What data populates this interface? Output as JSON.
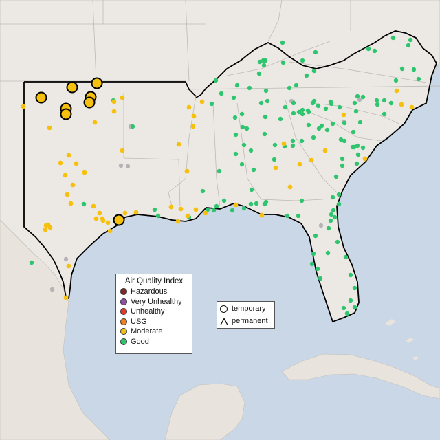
{
  "colors": {
    "water": "#c9d7e6",
    "land": "#ece9e4",
    "border": "#b9b6b1",
    "outline": "#000000",
    "Hazardous": "#7e2a2a",
    "Very Unhealthy": "#8f4fa6",
    "Unhealthy": "#e33a2c",
    "USG": "#f07f1d",
    "Moderate": "#f6c10e",
    "Good": "#2fc56f",
    "NoData": "#b4b4b4"
  },
  "legend": {
    "title": "Air Quality Index",
    "categories": [
      "Hazardous",
      "Very Unhealthy",
      "Unhealthy",
      "USG",
      "Moderate",
      "Good"
    ]
  },
  "shape_legend": {
    "temporary": "temporary",
    "permanent": "permanent"
  },
  "monitors": {
    "large_moderate": [
      [
        60,
        142
      ],
      [
        105,
        127
      ],
      [
        141,
        121
      ],
      [
        132,
        141
      ],
      [
        130,
        149
      ],
      [
        96,
        158
      ],
      [
        96,
        166
      ],
      [
        173,
        320
      ]
    ],
    "moderate": [
      [
        34,
        155
      ],
      [
        72,
        186
      ],
      [
        100,
        226
      ],
      [
        111,
        238
      ],
      [
        88,
        237
      ],
      [
        95,
        255
      ],
      [
        123,
        251
      ],
      [
        106,
        269
      ],
      [
        98,
        283
      ],
      [
        103,
        296
      ],
      [
        136,
        300
      ],
      [
        140,
        318
      ],
      [
        149,
        318
      ],
      [
        157,
        324
      ],
      [
        150,
        321
      ],
      [
        160,
        336
      ],
      [
        145,
        310
      ],
      [
        182,
        310
      ],
      [
        198,
        309
      ],
      [
        70,
        327
      ],
      [
        73,
        331
      ],
      [
        66,
        334
      ],
      [
        67,
        328
      ],
      [
        100,
        387
      ],
      [
        96,
        433
      ],
      [
        166,
        148
      ],
      [
        166,
        162
      ],
      [
        178,
        142
      ],
      [
        138,
        178
      ],
      [
        178,
        219
      ],
      [
        249,
        301
      ],
      [
        275,
        156
      ],
      [
        282,
        169
      ],
      [
        281,
        184
      ],
      [
        260,
        210
      ],
      [
        272,
        249
      ],
      [
        263,
        304
      ],
      [
        259,
        322
      ],
      [
        273,
        314
      ],
      [
        285,
        305
      ],
      [
        299,
        310
      ],
      [
        294,
        148
      ],
      [
        343,
        298
      ],
      [
        381,
        313
      ],
      [
        401,
        244
      ],
      [
        436,
        239
      ],
      [
        453,
        233
      ],
      [
        422,
        272
      ],
      [
        413,
        209
      ],
      [
        473,
        219
      ],
      [
        500,
        167
      ],
      [
        531,
        231
      ],
      [
        577,
        132
      ],
      [
        584,
        152
      ],
      [
        599,
        156
      ]
    ],
    "good": [
      [
        46,
        382
      ],
      [
        122,
        297
      ],
      [
        165,
        146
      ],
      [
        193,
        184
      ],
      [
        225,
        305
      ],
      [
        230,
        314
      ],
      [
        275,
        316
      ],
      [
        295,
        278
      ],
      [
        302,
        305
      ],
      [
        311,
        306
      ],
      [
        308,
        151
      ],
      [
        319,
        249
      ],
      [
        314,
        117
      ],
      [
        322,
        136
      ],
      [
        340,
        142
      ],
      [
        345,
        124
      ],
      [
        352,
        166
      ],
      [
        342,
        171
      ],
      [
        353,
        185
      ],
      [
        343,
        196
      ],
      [
        343,
        224
      ],
      [
        352,
        239
      ],
      [
        355,
        211
      ],
      [
        365,
        219
      ],
      [
        369,
        247
      ],
      [
        366,
        276
      ],
      [
        359,
        187
      ],
      [
        363,
        128
      ],
      [
        377,
        107
      ],
      [
        384,
        95
      ],
      [
        383,
        88
      ],
      [
        378,
        90
      ],
      [
        386,
        88
      ],
      [
        387,
        132
      ],
      [
        389,
        147
      ],
      [
        386,
        170
      ],
      [
        385,
        195
      ],
      [
        399,
        232
      ],
      [
        411,
        62
      ],
      [
        412,
        91
      ],
      [
        421,
        128
      ],
      [
        431,
        124
      ],
      [
        440,
        88
      ],
      [
        446,
        110
      ],
      [
        457,
        103
      ],
      [
        459,
        76
      ],
      [
        427,
        150
      ],
      [
        415,
        156
      ],
      [
        408,
        173
      ],
      [
        426,
        212
      ],
      [
        414,
        213
      ],
      [
        426,
        205
      ],
      [
        439,
        205
      ],
      [
        440,
        160
      ],
      [
        448,
        161
      ],
      [
        449,
        163
      ],
      [
        463,
        154
      ],
      [
        457,
        147
      ],
      [
        474,
        158
      ],
      [
        481,
        148
      ],
      [
        476,
        189
      ],
      [
        484,
        180
      ],
      [
        494,
        156
      ],
      [
        496,
        203
      ],
      [
        501,
        179
      ],
      [
        501,
        205
      ],
      [
        514,
        192
      ],
      [
        515,
        214
      ],
      [
        518,
        162
      ],
      [
        524,
        178
      ],
      [
        528,
        141
      ],
      [
        548,
        146
      ],
      [
        549,
        152
      ],
      [
        559,
        146
      ],
      [
        559,
        166
      ],
      [
        569,
        150
      ],
      [
        576,
        117
      ],
      [
        585,
        100
      ],
      [
        602,
        101
      ],
      [
        609,
        115
      ],
      [
        594,
        66
      ],
      [
        597,
        58
      ],
      [
        572,
        55
      ],
      [
        545,
        74
      ],
      [
        536,
        71
      ],
      [
        520,
        212
      ],
      [
        519,
        238
      ],
      [
        498,
        241
      ],
      [
        489,
        257
      ],
      [
        493,
        283
      ],
      [
        485,
        306
      ],
      [
        481,
        321
      ],
      [
        487,
        316
      ],
      [
        478,
        332
      ],
      [
        491,
        352
      ],
      [
        459,
        343
      ],
      [
        456,
        369
      ],
      [
        454,
        384
      ],
      [
        462,
        391
      ],
      [
        466,
        405
      ],
      [
        477,
        368
      ],
      [
        503,
        374
      ],
      [
        510,
        400
      ],
      [
        516,
        419
      ],
      [
        510,
        437
      ],
      [
        505,
        456
      ],
      [
        500,
        448
      ],
      [
        516,
        447
      ],
      [
        355,
        303
      ],
      [
        387,
        294
      ],
      [
        434,
        314
      ],
      [
        418,
        314
      ],
      [
        449,
        182
      ],
      [
        468,
        183
      ],
      [
        482,
        151
      ],
      [
        464,
        187
      ],
      [
        427,
        165
      ],
      [
        435,
        163
      ],
      [
        440,
        166
      ],
      [
        455,
        150
      ],
      [
        528,
        215
      ],
      [
        513,
        214
      ],
      [
        498,
        231
      ],
      [
        521,
        225
      ],
      [
        493,
        297
      ],
      [
        484,
        287
      ],
      [
        482,
        312
      ],
      [
        326,
        292
      ],
      [
        315,
        300
      ],
      [
        338,
        306
      ],
      [
        439,
        292
      ],
      [
        365,
        297
      ],
      [
        373,
        296
      ],
      [
        385,
        297
      ],
      [
        456,
        200
      ],
      [
        400,
        211
      ],
      [
        380,
        150
      ],
      [
        520,
        140
      ],
      [
        516,
        150
      ]
    ],
    "nodata": [
      [
        190,
        184
      ],
      [
        176,
        241
      ],
      [
        186,
        242
      ],
      [
        96,
        377
      ],
      [
        76,
        421
      ],
      [
        426,
        148
      ],
      [
        467,
        328
      ],
      [
        424,
        147
      ],
      [
        523,
        145
      ],
      [
        500,
        177
      ]
    ]
  }
}
